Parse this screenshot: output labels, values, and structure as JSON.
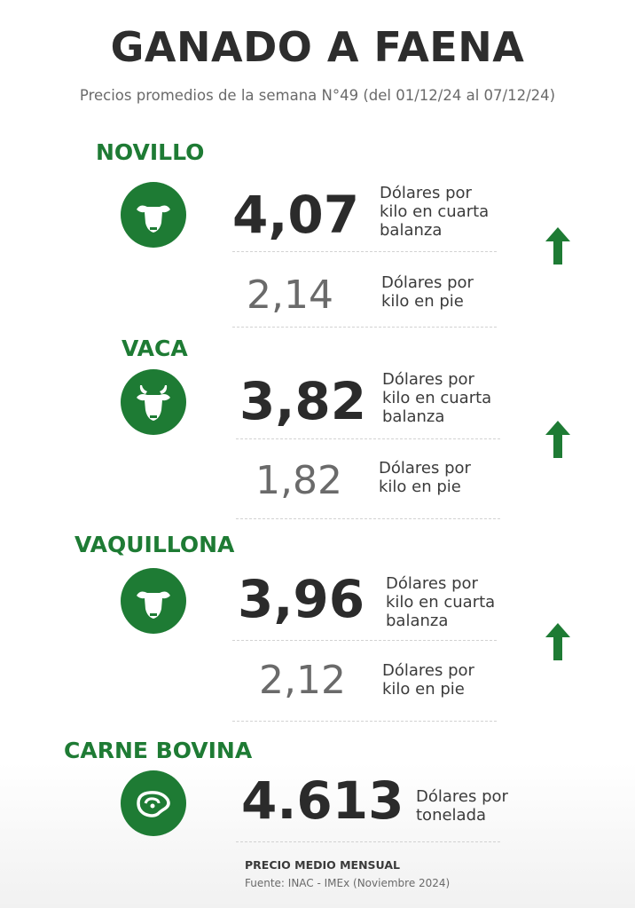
{
  "header": {
    "title": "GANADO A FAENA",
    "subtitle": "Precios promedios de la semana N°49 (del 01/12/24 al 07/12/24)"
  },
  "units": {
    "cuarta_balanza": "Dólares por\nkilo en cuarta\nbalanza",
    "en_pie": "Dólares por\nkilo en pie",
    "tonelada": "Dólares por\ntonelada"
  },
  "categories": [
    {
      "name": "NOVILLO",
      "icon": "steer-head-icon",
      "price_cuarta_balanza": "4,07",
      "price_en_pie": "2,14",
      "trend": "up"
    },
    {
      "name": "VACA",
      "icon": "cow-head-icon",
      "price_cuarta_balanza": "3,82",
      "price_en_pie": "1,82",
      "trend": "up"
    },
    {
      "name": "VAQUILLONA",
      "icon": "heifer-head-icon",
      "price_cuarta_balanza": "3,96",
      "price_en_pie": "2,12",
      "trend": "up"
    },
    {
      "name": "CARNE BOVINA",
      "icon": "beef-steak-icon",
      "price_tonelada": "4.613"
    }
  ],
  "footer": {
    "note": "PRECIO MEDIO MENSUAL",
    "source": "Fuente: INAC - IMEx (Noviembre 2024)"
  },
  "colors": {
    "accent_green": "#1e7b34",
    "text_dark": "#2b2b2b",
    "text_gray": "#6a6a6a"
  }
}
